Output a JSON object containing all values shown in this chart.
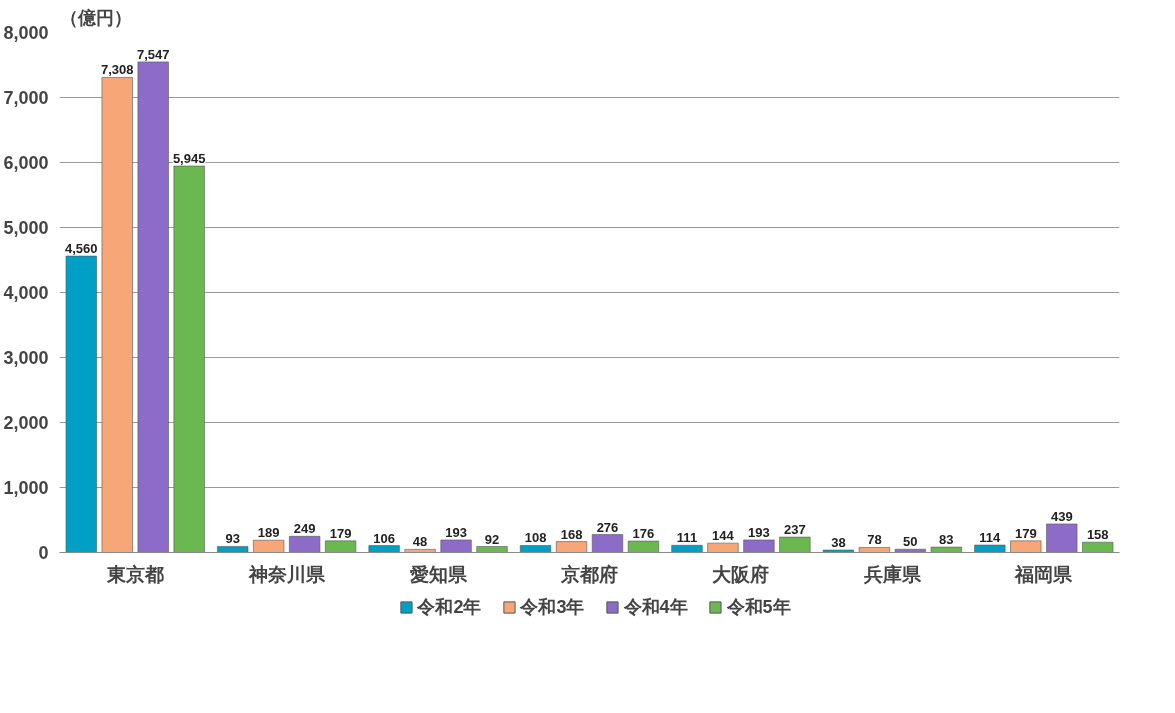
{
  "chart_data": {
    "type": "bar",
    "ylabel": "（億円）",
    "categories": [
      "東京都",
      "神奈川県",
      "愛知県",
      "京都府",
      "大阪府",
      "兵庫県",
      "福岡県"
    ],
    "series": [
      {
        "name": "令和2年",
        "color": "#00a0c6",
        "values": [
          4560,
          93,
          106,
          108,
          111,
          38,
          114
        ],
        "value_labels": [
          "4,560",
          "93",
          "106",
          "108",
          "111",
          "38",
          "114"
        ]
      },
      {
        "name": "令和3年",
        "color": "#f7a677",
        "values": [
          7308,
          189,
          48,
          168,
          144,
          78,
          179
        ],
        "value_labels": [
          "7,308",
          "189",
          "48",
          "168",
          "144",
          "78",
          "179"
        ]
      },
      {
        "name": "令和4年",
        "color": "#8c6cc8",
        "values": [
          7547,
          249,
          193,
          276,
          193,
          50,
          439
        ],
        "value_labels": [
          "7,547",
          "249",
          "193",
          "276",
          "193",
          "50",
          "439"
        ]
      },
      {
        "name": "令和5年",
        "color": "#6cb850",
        "values": [
          5945,
          179,
          92,
          176,
          237,
          83,
          158
        ],
        "value_labels": [
          "5,945",
          "179",
          "92",
          "176",
          "237",
          "83",
          "158"
        ]
      }
    ],
    "ylim": [
      0,
      8000
    ],
    "yticks": [
      {
        "value": 0,
        "label": "0"
      },
      {
        "value": 1000,
        "label": "1,000"
      },
      {
        "value": 2000,
        "label": "2,000"
      },
      {
        "value": 3000,
        "label": "3,000"
      },
      {
        "value": 4000,
        "label": "4,000"
      },
      {
        "value": 5000,
        "label": "5,000"
      },
      {
        "value": 6000,
        "label": "6,000"
      },
      {
        "value": 7000,
        "label": "7,000"
      },
      {
        "value": 8000,
        "label": "8,000"
      }
    ],
    "grid": "y",
    "legend": "bottom"
  }
}
